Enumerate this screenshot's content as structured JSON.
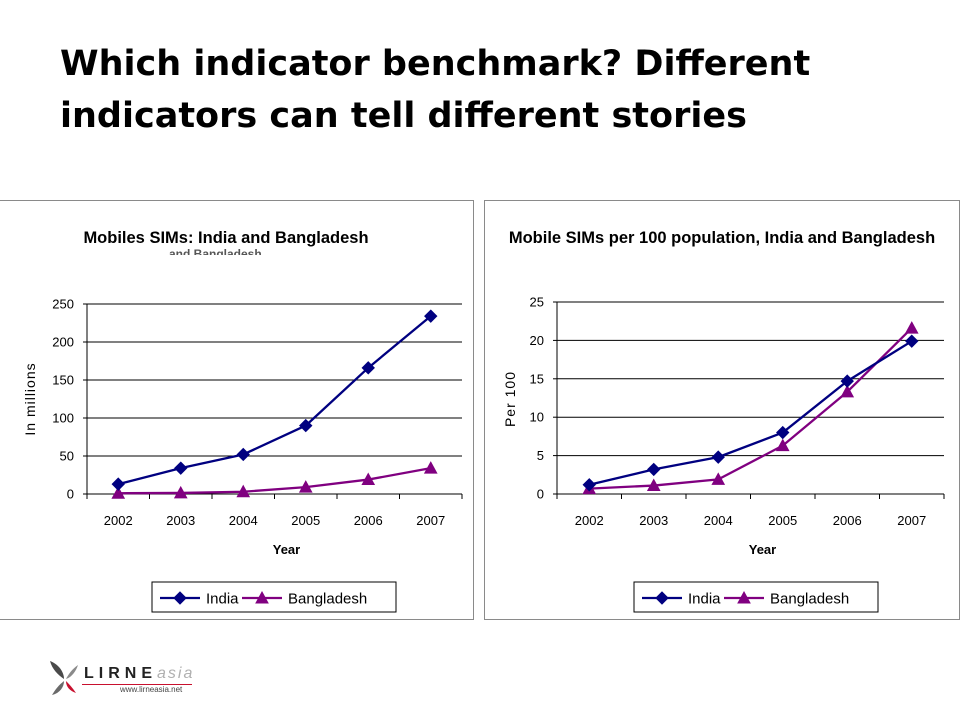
{
  "slide": {
    "title": "Which indicator benchmark? Different indicators can tell different stories"
  },
  "logo": {
    "brand_main": "LIRNE",
    "brand_sub": "asia",
    "url": "www.lirneasia.net"
  },
  "colors": {
    "india": "#000080",
    "bangladesh": "#800080",
    "logo_red": "#c8102e"
  },
  "chart_data": [
    {
      "type": "line",
      "title": "Mobiles SIMs: India and Bangladesh",
      "xlabel": "Year",
      "ylabel": "In millions",
      "categories": [
        "2002",
        "2003",
        "2004",
        "2005",
        "2006",
        "2007"
      ],
      "ylim": [
        0,
        250
      ],
      "yticks": [
        0,
        50,
        100,
        150,
        200,
        250
      ],
      "grid": true,
      "legend_position": "bottom",
      "series": [
        {
          "name": "India",
          "marker": "diamond",
          "values": [
            13,
            34,
            52,
            90,
            166,
            234
          ]
        },
        {
          "name": "Bangladesh",
          "marker": "triangle",
          "values": [
            1,
            1.4,
            3,
            9,
            19,
            34
          ]
        }
      ]
    },
    {
      "type": "line",
      "title": "Mobile SIMs per 100 population, India and Bangladesh",
      "xlabel": "Year",
      "ylabel": "Per 100",
      "categories": [
        "2002",
        "2003",
        "2004",
        "2005",
        "2006",
        "2007"
      ],
      "ylim": [
        0,
        25
      ],
      "yticks": [
        0,
        5,
        10,
        15,
        20,
        25
      ],
      "grid": true,
      "legend_position": "bottom",
      "series": [
        {
          "name": "India",
          "marker": "diamond",
          "values": [
            1.2,
            3.2,
            4.8,
            8,
            14.7,
            19.9
          ]
        },
        {
          "name": "Bangladesh",
          "marker": "triangle",
          "values": [
            0.7,
            1.1,
            1.9,
            6.3,
            13.3,
            21.6
          ]
        }
      ]
    }
  ]
}
